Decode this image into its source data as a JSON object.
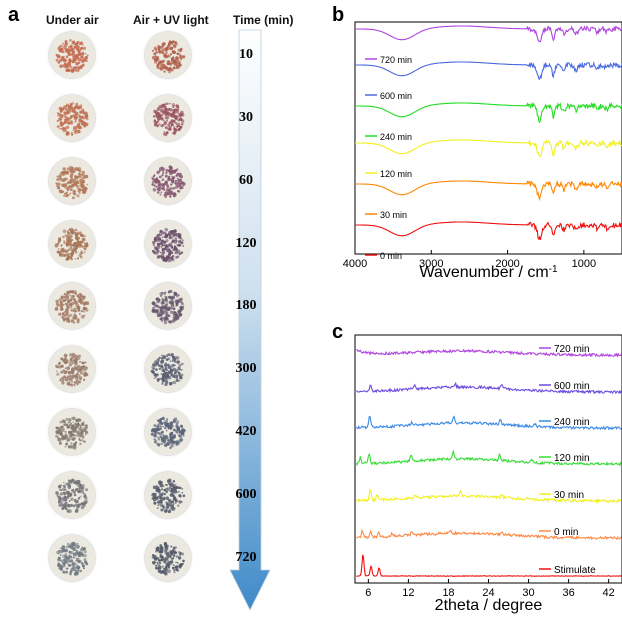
{
  "panel_a": {
    "letter": "a",
    "headers": {
      "under_air": "Under air",
      "air_uv": "Air + UV light",
      "time": "Time (min)"
    },
    "times": [
      "10",
      "30",
      "60",
      "120",
      "180",
      "300",
      "420",
      "600",
      "720"
    ],
    "under_air_colors": [
      "#c46a4e",
      "#c07254",
      "#b27a5a",
      "#a87658",
      "#a27a64",
      "#9c7c6c",
      "#857a70",
      "#75757a",
      "#707a80"
    ],
    "uv_colors": [
      "#b0604a",
      "#9a5560",
      "#865870",
      "#6a4f6a",
      "#685a6e",
      "#5a6070",
      "#5a6478",
      "#585c6c",
      "#545a68"
    ]
  },
  "chart_data": [
    {
      "type": "line",
      "panel": "b",
      "xlabel": "Wavenumber / cm",
      "xlabel_sup": "-1",
      "xlim": [
        4000,
        500
      ],
      "x_ticks": [
        4000,
        3000,
        2000,
        1000
      ],
      "x_tick_labels": [
        "4000",
        "3000",
        "2000",
        "1000"
      ],
      "series": [
        {
          "name": "720 min",
          "color": "#b044e0",
          "baseline": 7
        },
        {
          "name": "600 min",
          "color": "#4a6ae0",
          "baseline": 43
        },
        {
          "name": "240 min",
          "color": "#22dd22",
          "baseline": 84
        },
        {
          "name": "120 min",
          "color": "#f0f020",
          "baseline": 121
        },
        {
          "name": "30 min",
          "color": "#ff8800",
          "baseline": 162
        },
        {
          "name": "0 min",
          "color": "#ee1111",
          "baseline": 203
        }
      ]
    },
    {
      "type": "line",
      "panel": "c",
      "xlabel": "2theta / degree",
      "xlim": [
        4,
        44
      ],
      "x_ticks": [
        6,
        12,
        18,
        24,
        30,
        36,
        42
      ],
      "x_tick_labels": [
        "6",
        "12",
        "18",
        "24",
        "30",
        "36",
        "42"
      ],
      "series": [
        {
          "name": "720 min",
          "color": "#b044e0",
          "baseline": 20
        },
        {
          "name": "600 min",
          "color": "#6a4ae0",
          "baseline": 57
        },
        {
          "name": "240 min",
          "color": "#3a8ae8",
          "baseline": 93
        },
        {
          "name": "120 min",
          "color": "#33dd33",
          "baseline": 129
        },
        {
          "name": "30 min",
          "color": "#f0f020",
          "baseline": 166
        },
        {
          "name": "0 min",
          "color": "#ff8844",
          "baseline": 203
        },
        {
          "name": "Stimulate",
          "color": "#ee1111",
          "baseline": 241
        }
      ]
    }
  ]
}
